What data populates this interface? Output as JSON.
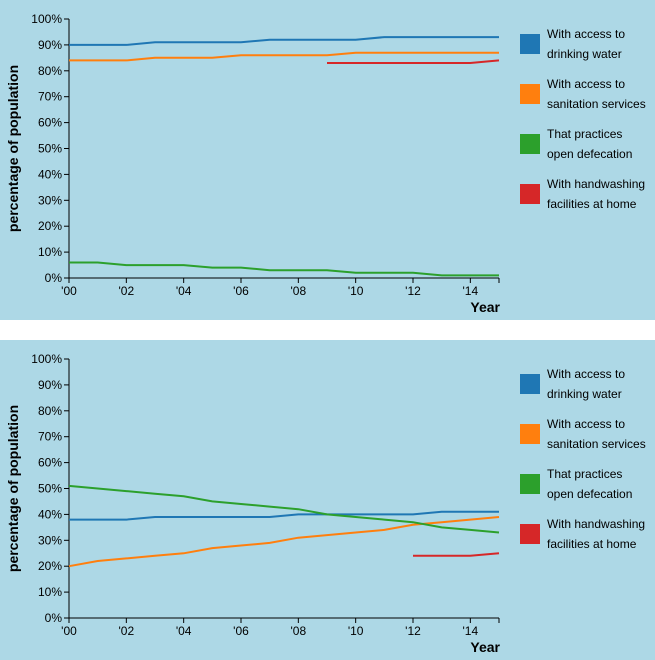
{
  "chart_data": [
    {
      "type": "line",
      "xlabel": "Year",
      "ylabel": "percentage of population",
      "ylim": [
        0,
        100
      ],
      "xlim": [
        2000,
        2015
      ],
      "x_ticks": [
        "'00",
        "'02",
        "'04",
        "'06",
        "'08",
        "'10",
        "'12",
        "'14"
      ],
      "y_ticks": [
        "0%",
        "10%",
        "20%",
        "30%",
        "40%",
        "50%",
        "60%",
        "70%",
        "80%",
        "90%",
        "100%"
      ],
      "legend_position": "right",
      "series": [
        {
          "name": "With access to drinking water",
          "legend_lines": [
            "With access to",
            "drinking water"
          ],
          "color": "#1f77b4",
          "x": [
            2000,
            2001,
            2002,
            2003,
            2004,
            2005,
            2006,
            2007,
            2008,
            2009,
            2010,
            2011,
            2012,
            2013,
            2014,
            2015
          ],
          "values": [
            90,
            90,
            90,
            91,
            91,
            91,
            91,
            92,
            92,
            92,
            92,
            93,
            93,
            93,
            93,
            93
          ]
        },
        {
          "name": "With access to sanitation services",
          "legend_lines": [
            "With access to",
            "sanitation services"
          ],
          "color": "#ff7f0e",
          "x": [
            2000,
            2001,
            2002,
            2003,
            2004,
            2005,
            2006,
            2007,
            2008,
            2009,
            2010,
            2011,
            2012,
            2013,
            2014,
            2015
          ],
          "values": [
            84,
            84,
            84,
            85,
            85,
            85,
            86,
            86,
            86,
            86,
            87,
            87,
            87,
            87,
            87,
            87
          ]
        },
        {
          "name": "That practices open defecation",
          "legend_lines": [
            "That practices",
            "open defecation"
          ],
          "color": "#2ca02c",
          "x": [
            2000,
            2001,
            2002,
            2003,
            2004,
            2005,
            2006,
            2007,
            2008,
            2009,
            2010,
            2011,
            2012,
            2013,
            2014,
            2015
          ],
          "values": [
            6,
            6,
            5,
            5,
            5,
            4,
            4,
            3,
            3,
            3,
            2,
            2,
            2,
            1,
            1,
            1
          ]
        },
        {
          "name": "With handwashing facilities at home",
          "legend_lines": [
            "With handwashing",
            "facilities at home"
          ],
          "color": "#d62728",
          "x": [
            2009,
            2010,
            2011,
            2012,
            2013,
            2014,
            2015
          ],
          "values": [
            83,
            83,
            83,
            83,
            83,
            83,
            84
          ]
        }
      ]
    },
    {
      "type": "line",
      "xlabel": "Year",
      "ylabel": "percentage of population",
      "ylim": [
        0,
        100
      ],
      "xlim": [
        2000,
        2015
      ],
      "x_ticks": [
        "'00",
        "'02",
        "'04",
        "'06",
        "'08",
        "'10",
        "'12",
        "'14"
      ],
      "y_ticks": [
        "0%",
        "10%",
        "20%",
        "30%",
        "40%",
        "50%",
        "60%",
        "70%",
        "80%",
        "90%",
        "100%"
      ],
      "legend_position": "right",
      "series": [
        {
          "name": "With access to drinking water",
          "legend_lines": [
            "With access to",
            "drinking water"
          ],
          "color": "#1f77b4",
          "x": [
            2000,
            2001,
            2002,
            2003,
            2004,
            2005,
            2006,
            2007,
            2008,
            2009,
            2010,
            2011,
            2012,
            2013,
            2014,
            2015
          ],
          "values": [
            38,
            38,
            38,
            39,
            39,
            39,
            39,
            39,
            40,
            40,
            40,
            40,
            40,
            41,
            41,
            41
          ]
        },
        {
          "name": "With access to sanitation services",
          "legend_lines": [
            "With access to",
            "sanitation services"
          ],
          "color": "#ff7f0e",
          "x": [
            2000,
            2001,
            2002,
            2003,
            2004,
            2005,
            2006,
            2007,
            2008,
            2009,
            2010,
            2011,
            2012,
            2013,
            2014,
            2015
          ],
          "values": [
            20,
            22,
            23,
            24,
            25,
            27,
            28,
            29,
            31,
            32,
            33,
            34,
            36,
            37,
            38,
            39
          ]
        },
        {
          "name": "That practices open defecation",
          "legend_lines": [
            "That practices",
            "open defecation"
          ],
          "color": "#2ca02c",
          "x": [
            2000,
            2001,
            2002,
            2003,
            2004,
            2005,
            2006,
            2007,
            2008,
            2009,
            2010,
            2011,
            2012,
            2013,
            2014,
            2015
          ],
          "values": [
            51,
            50,
            49,
            48,
            47,
            45,
            44,
            43,
            42,
            40,
            39,
            38,
            37,
            35,
            34,
            33
          ]
        },
        {
          "name": "With handwashing facilities at home",
          "legend_lines": [
            "With handwashing",
            "facilities at home"
          ],
          "color": "#d62728",
          "x": [
            2012,
            2013,
            2014,
            2015
          ],
          "values": [
            24,
            24,
            24,
            25
          ]
        }
      ]
    }
  ]
}
